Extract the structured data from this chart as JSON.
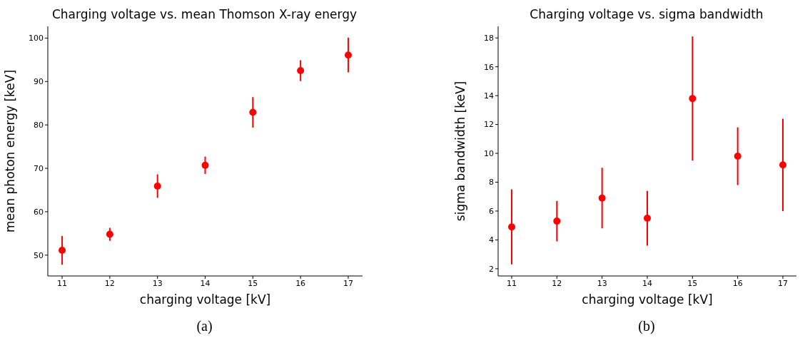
{
  "chart_data": [
    {
      "type": "scatter",
      "title": "Charging voltage vs. mean Thomson X-ray energy",
      "xlabel": "charging voltage [kV]",
      "ylabel": "mean photon energy [keV]",
      "annotations": [
        "(a)"
      ],
      "x": [
        11,
        12,
        13,
        14,
        15,
        16,
        17
      ],
      "series": [
        {
          "color": "#ff0000",
          "values": [
            51.1,
            54.8,
            65.9,
            70.7,
            82.9,
            92.5,
            96.1
          ],
          "errors": [
            3.3,
            1.5,
            2.7,
            2,
            3.5,
            2.4,
            4
          ]
        }
      ],
      "xlim": [
        10.7,
        17.3
      ],
      "xticks": [
        11,
        12,
        13,
        14,
        15,
        16,
        17
      ],
      "ylim": [
        45.2,
        102.7
      ],
      "yticks": [
        50,
        60,
        70,
        80,
        90,
        100
      ],
      "marker": "circle",
      "grid": false,
      "legend": false
    },
    {
      "type": "scatter",
      "title": "Charging voltage vs. sigma bandwidth",
      "xlabel": "charging voltage [kV]",
      "ylabel": "sigma bandwidth [keV]",
      "annotations": [
        "(b)"
      ],
      "x": [
        11,
        12,
        13,
        14,
        15,
        16,
        17
      ],
      "series": [
        {
          "color": "#ff0000",
          "values": [
            4.9,
            5.3,
            6.9,
            5.5,
            13.8,
            9.8,
            9.2
          ],
          "errors": [
            2.6,
            1.4,
            2.1,
            1.9,
            4.3,
            2,
            3.2
          ]
        }
      ],
      "xlim": [
        10.7,
        17.3
      ],
      "xticks": [
        11,
        12,
        13,
        14,
        15,
        16,
        17
      ],
      "ylim": [
        1.5,
        18.8
      ],
      "yticks": [
        2,
        4,
        6,
        8,
        10,
        12,
        14,
        16,
        18
      ],
      "marker": "circle",
      "grid": false,
      "legend": false
    }
  ]
}
